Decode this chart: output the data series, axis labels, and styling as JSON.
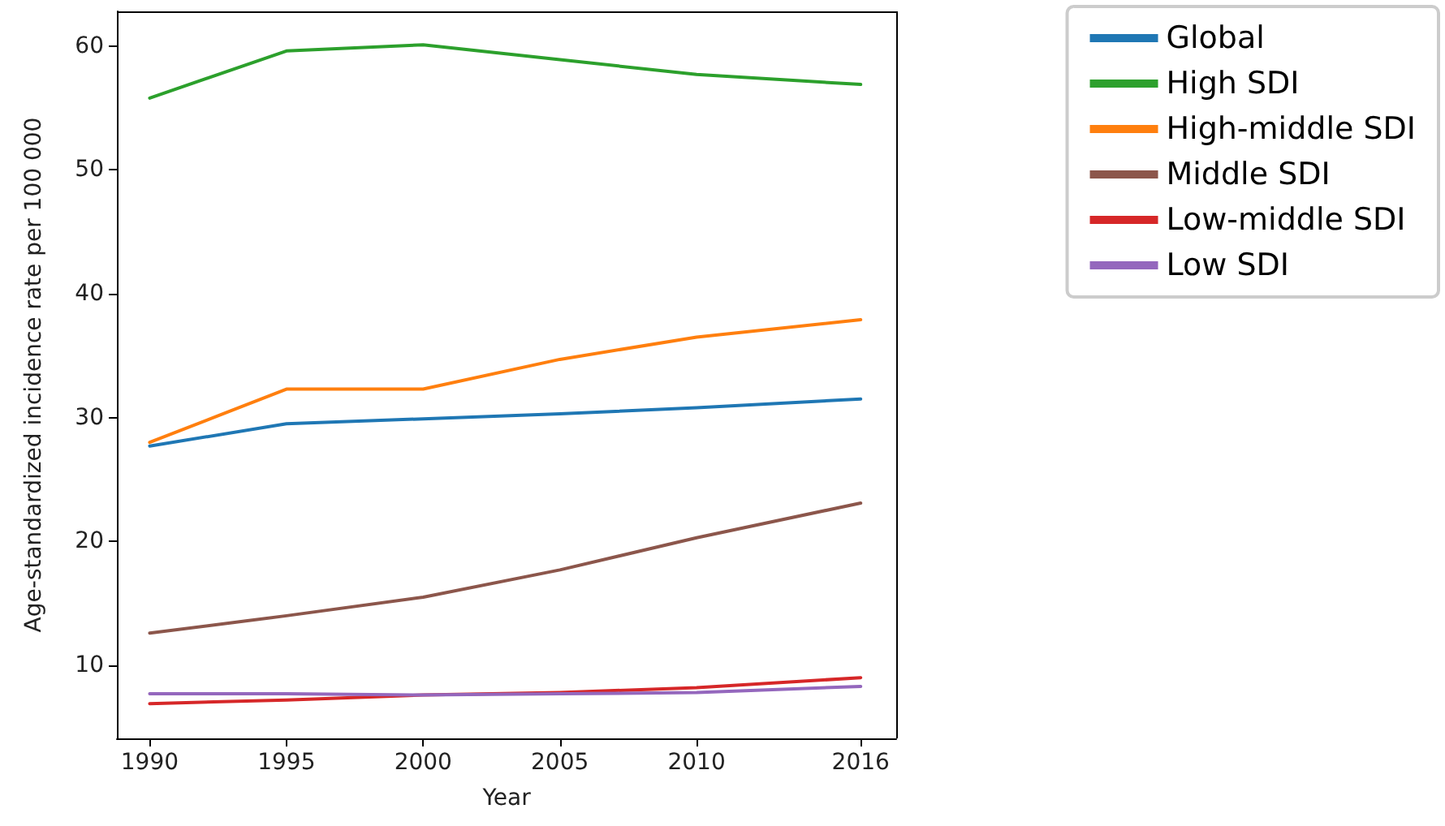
{
  "chart_data": {
    "type": "line",
    "xlabel": "Year",
    "ylabel": "Age-standardized incidence rate per 100 000",
    "x": [
      1990,
      1995,
      2000,
      2005,
      2010,
      2016
    ],
    "series": [
      {
        "name": "Global",
        "color": "#1f77b4",
        "values": [
          27.7,
          29.5,
          29.9,
          30.3,
          30.8,
          31.5
        ]
      },
      {
        "name": "High SDI",
        "color": "#2ca02c",
        "values": [
          55.8,
          59.6,
          60.1,
          58.9,
          57.7,
          56.9
        ]
      },
      {
        "name": "High-middle SDI",
        "color": "#ff7f0e",
        "values": [
          28,
          32.3,
          32.3,
          34.7,
          36.5,
          37.9
        ]
      },
      {
        "name": "Middle SDI",
        "color": "#8c564b",
        "values": [
          12.6,
          14.0,
          15.5,
          17.7,
          20.3,
          23.1
        ]
      },
      {
        "name": "Low-middle SDI",
        "color": "#d62728",
        "values": [
          6.9,
          7.2,
          7.6,
          7.8,
          8.2,
          9.0
        ]
      },
      {
        "name": "Low SDI",
        "color": "#9467bd",
        "values": [
          7.7,
          7.7,
          7.6,
          7.7,
          7.8,
          8.3
        ]
      }
    ],
    "xlim": [
      1988.8,
      2017.3
    ],
    "xticks": [
      1990,
      1995,
      2000,
      2005,
      2010,
      2016
    ],
    "ylim": [
      4.1,
      62.8
    ],
    "yticks": [
      10,
      20,
      30,
      40,
      50,
      60
    ],
    "grid": false,
    "legend": "top right",
    "marker": "none",
    "line_style": "solid"
  }
}
